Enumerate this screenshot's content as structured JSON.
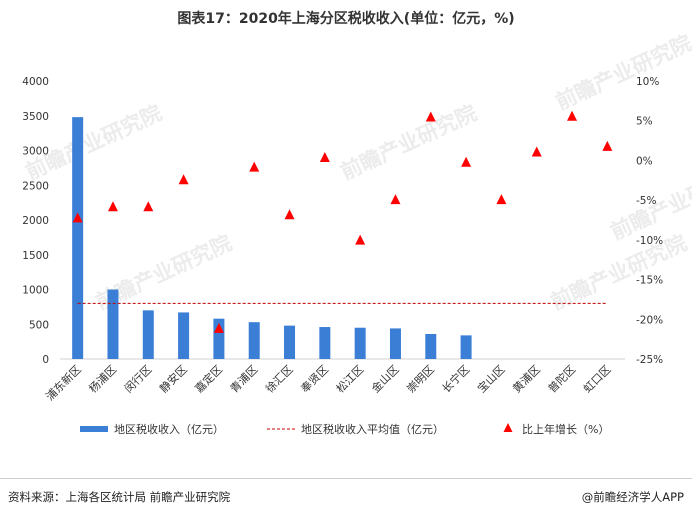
{
  "header": {
    "title": "图表17：2020年上海分区税收收入(单位：亿元，%)"
  },
  "footer": {
    "source": "资料来源：上海各区统计局 前瞻产业研究院",
    "brand": "@前瞻经济学人APP"
  },
  "watermark": {
    "text": "前瞻产业研究院"
  },
  "colors": {
    "bar": "#3a7fd5",
    "avg_line": "#c00000",
    "marker": "#ff0000",
    "text": "#333333"
  },
  "chart_data": {
    "type": "bar",
    "title": "2020年上海分区税收收入(单位：亿元，%)",
    "categories": [
      "浦东新区",
      "杨浦区",
      "闵行区",
      "静安区",
      "嘉定区",
      "青浦区",
      "徐汇区",
      "奉贤区",
      "松江区",
      "金山区",
      "崇明区",
      "长宁区",
      "宝山区",
      "黄浦区",
      "普陀区",
      "虹口区"
    ],
    "series": [
      {
        "name": "地区税收收入（亿元）",
        "kind": "bar",
        "axis": "left",
        "values": [
          3480,
          1000,
          700,
          670,
          580,
          530,
          480,
          460,
          450,
          440,
          360,
          340,
          null,
          null,
          null,
          null
        ]
      },
      {
        "name": "地区税收收入平均值（亿元）",
        "kind": "line",
        "style": "dashed",
        "axis": "left",
        "value": 800
      },
      {
        "name": "比上年增长（%）",
        "kind": "scatter",
        "marker": "triangle",
        "axis": "right",
        "values": [
          -7.3,
          -5.9,
          -5.9,
          -2.5,
          -21.2,
          -0.9,
          -6.9,
          0.3,
          -10.1,
          -5.0,
          5.4,
          -0.3,
          -5.0,
          1.0,
          5.5,
          1.7
        ]
      }
    ],
    "y_left": {
      "min": 0,
      "max": 4000,
      "ticks": [
        0,
        500,
        1000,
        1500,
        2000,
        2500,
        3000,
        3500,
        4000
      ]
    },
    "y_right": {
      "min": -25,
      "max": 10,
      "ticks": [
        -25,
        -20,
        -15,
        -10,
        -5,
        0,
        5,
        10
      ],
      "tick_labels": [
        "-25%",
        "-20%",
        "-15%",
        "-10%",
        "-5%",
        "0%",
        "5%",
        "10%"
      ]
    },
    "grid": false,
    "legend": "bottom"
  }
}
